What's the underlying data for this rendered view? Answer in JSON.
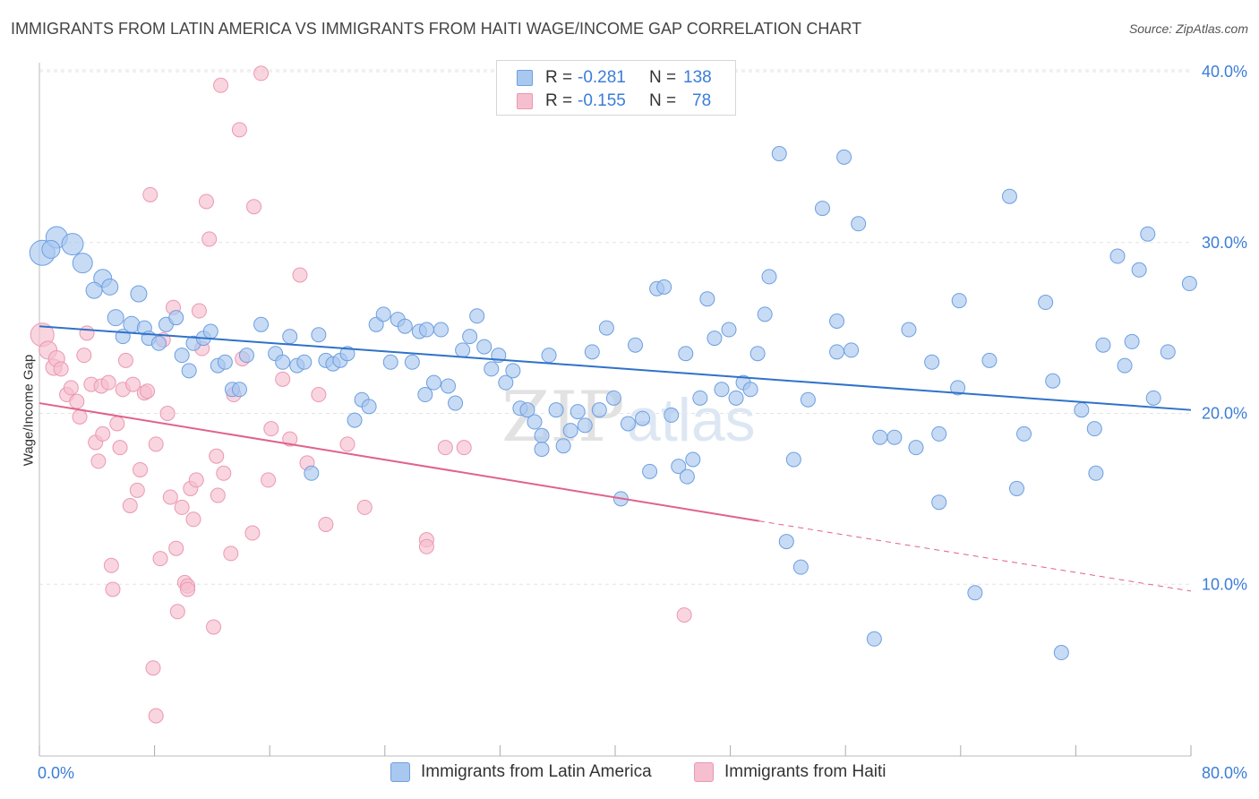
{
  "header": {
    "title": "IMMIGRANTS FROM LATIN AMERICA VS IMMIGRANTS FROM HAITI WAGE/INCOME GAP CORRELATION CHART",
    "source": "Source: ZipAtlas.com"
  },
  "watermark": {
    "zip": "ZIP",
    "atlas": "atlas"
  },
  "legend_top": {
    "rows": [
      {
        "r_label": "R =",
        "r_value": "-0.281",
        "n_label": "N =",
        "n_value": "138"
      },
      {
        "r_label": "R =",
        "r_value": "-0.155",
        "n_label": "N =",
        "n_value": "78"
      }
    ]
  },
  "colors": {
    "latin_fill": "#a9c8ef",
    "latin_stroke": "#6d9fe0",
    "latin_line": "#2f72c9",
    "haiti_fill": "#f6bfd0",
    "haiti_stroke": "#eb98b2",
    "haiti_line": "#e0628e",
    "tick_text": "#3b7dd8",
    "grid": "#e3e3e3"
  },
  "chart_data": {
    "type": "scatter",
    "title": "IMMIGRANTS FROM LATIN AMERICA VS IMMIGRANTS FROM HAITI WAGE/INCOME GAP CORRELATION CHART",
    "xlabel": "",
    "ylabel": "Wage/Income Gap",
    "xlim": [
      0,
      80
    ],
    "ylim": [
      0,
      42
    ],
    "x_tick_labels": [
      "0.0%",
      "80.0%"
    ],
    "y_ticks": [
      10,
      20,
      30,
      40
    ],
    "y_tick_labels": [
      "10.0%",
      "20.0%",
      "30.0%",
      "40.0%"
    ],
    "grid": true,
    "legend_position": "bottom",
    "series": [
      {
        "name": "Immigrants from Latin America",
        "r": -0.281,
        "n": 138,
        "trend": {
          "x": [
            0,
            80
          ],
          "y": [
            25.1,
            20.2
          ]
        },
        "points": [
          [
            0.2,
            29.4,
            14
          ],
          [
            1.2,
            30.3,
            12
          ],
          [
            0.8,
            29.6,
            10
          ],
          [
            2.3,
            29.9,
            12
          ],
          [
            3.0,
            28.8,
            11
          ],
          [
            4.4,
            27.9,
            10
          ],
          [
            3.8,
            27.2,
            9
          ],
          [
            4.9,
            27.4,
            9
          ],
          [
            6.9,
            27.0,
            9
          ],
          [
            5.3,
            25.6,
            9
          ],
          [
            6.4,
            25.2,
            9
          ],
          [
            7.3,
            25.0,
            8
          ],
          [
            5.8,
            24.5,
            8
          ],
          [
            7.6,
            24.4,
            8
          ],
          [
            8.3,
            24.1,
            8
          ],
          [
            8.8,
            25.2,
            8
          ],
          [
            9.5,
            25.6,
            8
          ],
          [
            9.9,
            23.4,
            8
          ],
          [
            10.4,
            22.5,
            8
          ],
          [
            10.7,
            24.1,
            8
          ],
          [
            11.4,
            24.4,
            8
          ],
          [
            11.9,
            24.8,
            8
          ],
          [
            12.4,
            22.8,
            8
          ],
          [
            12.9,
            23.0,
            8
          ],
          [
            13.4,
            21.4,
            8
          ],
          [
            13.9,
            21.4,
            8
          ],
          [
            14.4,
            23.4,
            8
          ],
          [
            15.4,
            25.2,
            8
          ],
          [
            16.4,
            23.5,
            8
          ],
          [
            16.9,
            23.0,
            8
          ],
          [
            17.4,
            24.5,
            8
          ],
          [
            17.9,
            22.8,
            8
          ],
          [
            18.4,
            23.0,
            8
          ],
          [
            18.9,
            16.5,
            8
          ],
          [
            19.4,
            24.6,
            8
          ],
          [
            19.9,
            23.1,
            8
          ],
          [
            20.4,
            22.9,
            8
          ],
          [
            20.9,
            23.1,
            8
          ],
          [
            21.4,
            23.5,
            8
          ],
          [
            21.9,
            19.6,
            8
          ],
          [
            22.4,
            20.8,
            8
          ],
          [
            22.9,
            20.4,
            8
          ],
          [
            23.4,
            25.2,
            8
          ],
          [
            23.9,
            25.8,
            8
          ],
          [
            24.4,
            23.0,
            8
          ],
          [
            24.9,
            25.5,
            8
          ],
          [
            25.4,
            25.1,
            8
          ],
          [
            25.9,
            23.0,
            8
          ],
          [
            26.4,
            24.8,
            8
          ],
          [
            26.9,
            24.9,
            8
          ],
          [
            27.4,
            21.8,
            8
          ],
          [
            27.9,
            24.9,
            8
          ],
          [
            28.4,
            21.6,
            8
          ],
          [
            28.9,
            20.6,
            8
          ],
          [
            29.4,
            23.7,
            8
          ],
          [
            29.9,
            24.5,
            8
          ],
          [
            30.4,
            25.7,
            8
          ],
          [
            30.9,
            23.9,
            8
          ],
          [
            31.4,
            22.6,
            8
          ],
          [
            31.9,
            23.4,
            8
          ],
          [
            32.4,
            21.8,
            8
          ],
          [
            32.9,
            22.5,
            8
          ],
          [
            33.4,
            20.3,
            8
          ],
          [
            33.9,
            20.2,
            8
          ],
          [
            34.4,
            19.5,
            8
          ],
          [
            34.9,
            18.7,
            8
          ],
          [
            35.4,
            23.4,
            8
          ],
          [
            35.9,
            20.2,
            8
          ],
          [
            36.4,
            18.1,
            8
          ],
          [
            36.9,
            19.0,
            8
          ],
          [
            37.4,
            20.1,
            8
          ],
          [
            37.9,
            19.3,
            8
          ],
          [
            38.4,
            23.6,
            8
          ],
          [
            38.9,
            20.2,
            8
          ],
          [
            39.4,
            25.0,
            8
          ],
          [
            39.9,
            20.9,
            8
          ],
          [
            40.4,
            15.0,
            8
          ],
          [
            40.9,
            19.4,
            8
          ],
          [
            41.4,
            24.0,
            8
          ],
          [
            41.9,
            19.7,
            8
          ],
          [
            42.4,
            16.6,
            8
          ],
          [
            42.9,
            27.3,
            8
          ],
          [
            43.4,
            27.4,
            8
          ],
          [
            43.9,
            19.9,
            8
          ],
          [
            44.4,
            16.9,
            8
          ],
          [
            44.9,
            23.5,
            8
          ],
          [
            45.4,
            17.3,
            8
          ],
          [
            45.9,
            20.9,
            8
          ],
          [
            46.4,
            26.7,
            8
          ],
          [
            46.9,
            24.4,
            8
          ],
          [
            47.4,
            21.4,
            8
          ],
          [
            47.9,
            24.9,
            8
          ],
          [
            48.4,
            20.9,
            8
          ],
          [
            48.9,
            21.8,
            8
          ],
          [
            49.4,
            21.4,
            8
          ],
          [
            49.9,
            23.5,
            8
          ],
          [
            50.4,
            25.8,
            8
          ],
          [
            50.7,
            28.0,
            8
          ],
          [
            51.4,
            35.2,
            8
          ],
          [
            51.9,
            12.5,
            8
          ],
          [
            52.4,
            17.3,
            8
          ],
          [
            52.9,
            11.0,
            8
          ],
          [
            53.4,
            20.8,
            8
          ],
          [
            54.4,
            32.0,
            8
          ],
          [
            55.4,
            23.6,
            8
          ],
          [
            55.9,
            35.0,
            8
          ],
          [
            56.4,
            23.7,
            8
          ],
          [
            56.9,
            31.1,
            8
          ],
          [
            58.0,
            6.8,
            8
          ],
          [
            58.4,
            18.6,
            8
          ],
          [
            59.4,
            18.6,
            8
          ],
          [
            60.4,
            24.9,
            8
          ],
          [
            60.9,
            18.0,
            8
          ],
          [
            62.0,
            23.0,
            8
          ],
          [
            62.5,
            14.8,
            8
          ],
          [
            62.5,
            18.8,
            8
          ],
          [
            63.9,
            26.6,
            8
          ],
          [
            65.0,
            9.5,
            8
          ],
          [
            66.0,
            23.1,
            8
          ],
          [
            67.4,
            32.7,
            8
          ],
          [
            67.9,
            15.6,
            8
          ],
          [
            68.4,
            18.8,
            8
          ],
          [
            69.9,
            26.5,
            8
          ],
          [
            70.4,
            21.9,
            8
          ],
          [
            71.0,
            6.0,
            8
          ],
          [
            72.4,
            20.2,
            8
          ],
          [
            73.4,
            16.5,
            8
          ],
          [
            73.9,
            24.0,
            8
          ],
          [
            74.9,
            29.2,
            8
          ],
          [
            75.4,
            22.8,
            8
          ],
          [
            75.9,
            24.2,
            8
          ],
          [
            76.4,
            28.4,
            8
          ],
          [
            77.4,
            20.9,
            8
          ],
          [
            78.4,
            23.6,
            8
          ],
          [
            79.9,
            27.6,
            8
          ],
          [
            77.0,
            30.5,
            8
          ],
          [
            26.8,
            21.1,
            8
          ],
          [
            34.9,
            17.9,
            8
          ],
          [
            63.8,
            21.5,
            8
          ],
          [
            55.4,
            25.4,
            8
          ],
          [
            45.0,
            16.3,
            8
          ],
          [
            73.3,
            19.1,
            8
          ]
        ]
      },
      {
        "name": "Immigrants from Haiti",
        "r": -0.155,
        "n": 78,
        "trend": {
          "x": [
            0,
            50,
            80
          ],
          "y": [
            20.6,
            13.7,
            9.6
          ]
        },
        "points": [
          [
            0.2,
            24.6,
            13
          ],
          [
            0.6,
            23.7,
            10
          ],
          [
            1.0,
            22.7,
            9
          ],
          [
            1.2,
            23.2,
            9
          ],
          [
            1.5,
            22.6,
            8
          ],
          [
            1.9,
            21.1,
            8
          ],
          [
            2.2,
            21.5,
            8
          ],
          [
            2.6,
            20.7,
            8
          ],
          [
            2.8,
            19.8,
            8
          ],
          [
            3.1,
            23.4,
            8
          ],
          [
            3.3,
            24.7,
            8
          ],
          [
            3.6,
            21.7,
            8
          ],
          [
            3.9,
            18.3,
            8
          ],
          [
            4.1,
            17.2,
            8
          ],
          [
            4.3,
            21.6,
            8
          ],
          [
            4.4,
            18.8,
            8
          ],
          [
            4.8,
            21.8,
            8
          ],
          [
            5.0,
            11.1,
            8
          ],
          [
            5.1,
            9.7,
            8
          ],
          [
            5.4,
            19.4,
            8
          ],
          [
            5.6,
            18.0,
            8
          ],
          [
            5.8,
            21.4,
            8
          ],
          [
            6.0,
            23.1,
            8
          ],
          [
            6.3,
            14.6,
            8
          ],
          [
            6.5,
            21.7,
            8
          ],
          [
            6.8,
            15.5,
            8
          ],
          [
            7.0,
            16.7,
            8
          ],
          [
            7.3,
            21.2,
            8
          ],
          [
            7.5,
            21.3,
            8
          ],
          [
            7.7,
            32.8,
            8
          ],
          [
            7.9,
            5.1,
            8
          ],
          [
            8.1,
            18.2,
            8
          ],
          [
            8.4,
            11.5,
            8
          ],
          [
            8.6,
            24.3,
            8
          ],
          [
            8.9,
            20.0,
            8
          ],
          [
            9.1,
            15.1,
            8
          ],
          [
            9.3,
            26.2,
            8
          ],
          [
            9.5,
            12.1,
            8
          ],
          [
            9.6,
            8.4,
            8
          ],
          [
            9.9,
            14.5,
            8
          ],
          [
            10.1,
            10.1,
            8
          ],
          [
            10.3,
            9.9,
            8
          ],
          [
            10.5,
            15.6,
            8
          ],
          [
            10.7,
            13.8,
            8
          ],
          [
            10.9,
            16.1,
            8
          ],
          [
            11.1,
            26.0,
            8
          ],
          [
            11.3,
            23.8,
            8
          ],
          [
            11.6,
            32.4,
            8
          ],
          [
            11.8,
            30.2,
            8
          ],
          [
            12.1,
            7.5,
            8
          ],
          [
            12.3,
            17.5,
            8
          ],
          [
            12.4,
            15.2,
            8
          ],
          [
            12.6,
            39.2,
            8
          ],
          [
            12.8,
            16.5,
            8
          ],
          [
            13.3,
            11.8,
            8
          ],
          [
            13.5,
            21.1,
            8
          ],
          [
            13.9,
            36.6,
            8
          ],
          [
            14.1,
            23.2,
            8
          ],
          [
            14.8,
            13.0,
            8
          ],
          [
            14.9,
            32.1,
            8
          ],
          [
            15.4,
            39.9,
            8
          ],
          [
            15.9,
            16.1,
            8
          ],
          [
            16.1,
            19.1,
            8
          ],
          [
            16.9,
            22.0,
            8
          ],
          [
            17.4,
            18.5,
            8
          ],
          [
            18.1,
            28.1,
            8
          ],
          [
            18.6,
            17.1,
            8
          ],
          [
            19.4,
            21.1,
            8
          ],
          [
            19.9,
            13.5,
            8
          ],
          [
            21.4,
            18.2,
            8
          ],
          [
            22.6,
            14.5,
            8
          ],
          [
            26.9,
            12.6,
            8
          ],
          [
            26.9,
            12.2,
            8
          ],
          [
            28.2,
            18.0,
            8
          ],
          [
            29.5,
            18.0,
            8
          ],
          [
            44.8,
            8.2,
            8
          ],
          [
            10.3,
            9.7,
            8
          ],
          [
            8.1,
            2.3,
            8
          ]
        ]
      }
    ]
  },
  "legend_bottom": {
    "items": [
      "Immigrants from Latin America",
      "Immigrants from Haiti"
    ]
  }
}
